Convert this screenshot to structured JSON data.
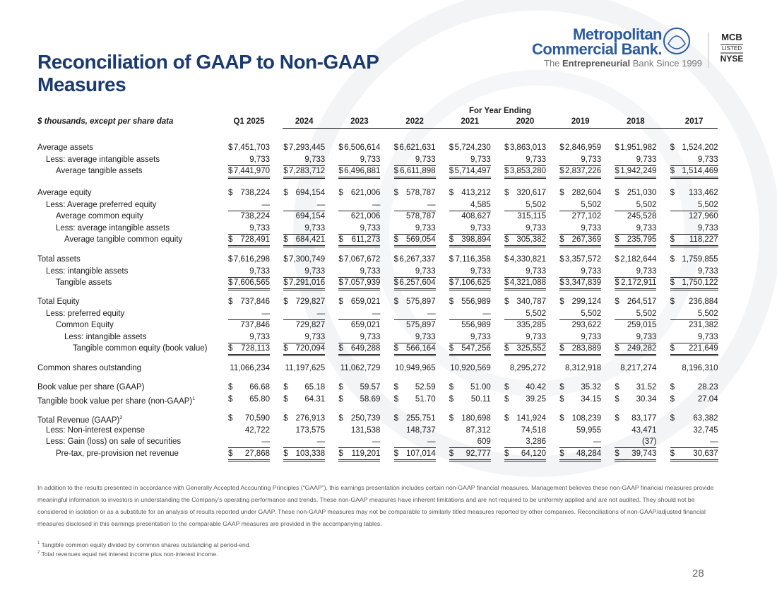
{
  "header": {
    "title": "Reconciliation of GAAP to Non-GAAP Measures",
    "logo": {
      "name_line1": "Metropolitan",
      "name_line2": "Commercial Bank.",
      "tagline": [
        "The ",
        "Entrepreneurial",
        " Bank Since 1999"
      ]
    },
    "listing": [
      "MCB",
      "LISTED",
      "NYSE"
    ]
  },
  "table": {
    "unit_label": "$ thousands, except per share data",
    "group_header": "For Year Ending",
    "columns": [
      "Q1 2025",
      "2024",
      "2023",
      "2022",
      "2021",
      "2020",
      "2019",
      "2018",
      "2017"
    ],
    "groups": [
      [
        {
          "label": "Average assets",
          "prefix": "$",
          "cells": [
            "7,451,703",
            "7,293,445",
            "6,506,614",
            "6,621,631",
            "5,724,230",
            "3,863,013",
            "2,846,959",
            "1,951,982",
            "1,524,202"
          ]
        },
        {
          "label": "Less: average intangible assets",
          "cells": [
            "9,733",
            "9,733",
            "9,733",
            "9,733",
            "9,733",
            "9,733",
            "9,733",
            "9,733",
            "9,733"
          ]
        },
        {
          "label": "Average tangible assets",
          "prefix": "$",
          "cells": [
            "7,441,970",
            "7,283,712",
            "6,496,881",
            "6,611,898",
            "5,714,497",
            "3,853,280",
            "2,837,226",
            "1,942,249",
            "1,514,469"
          ]
        }
      ],
      [
        {
          "label": "Average equity",
          "prefix": "$",
          "cells": [
            "738,224",
            "694,154",
            "621,006",
            "578,787",
            "413,212",
            "320,617",
            "282,604",
            "251,030",
            "133,462"
          ]
        },
        {
          "label": "Less: Average preferred equity",
          "cells": [
            "—",
            "—",
            "—",
            "—",
            "4,585",
            "5,502",
            "5,502",
            "5,502",
            "5,502"
          ]
        },
        {
          "label": "Average common equity",
          "cells": [
            "738,224",
            "694,154",
            "621,006",
            "578,787",
            "408,627",
            "315,115",
            "277,102",
            "245,528",
            "127,960"
          ]
        },
        {
          "label": "Less: average intangible assets",
          "cells": [
            "9,733",
            "9,733",
            "9,733",
            "9,733",
            "9,733",
            "9,733",
            "9,733",
            "9,733",
            "9,733"
          ]
        },
        {
          "label": "Average tangible common equity",
          "prefix": "$",
          "cells": [
            "728,491",
            "684,421",
            "611,273",
            "569,054",
            "398,894",
            "305,382",
            "267,369",
            "235,795",
            "118,227"
          ]
        }
      ],
      [
        {
          "label": "Total assets",
          "prefix": "$",
          "cells": [
            "7,616,298",
            "7,300,749",
            "7,067,672",
            "6,267,337",
            "7,116,358",
            "4,330,821",
            "3,357,572",
            "2,182,644",
            "1,759,855"
          ]
        },
        {
          "label": "Less: intangible assets",
          "cells": [
            "9,733",
            "9,733",
            "9,733",
            "9,733",
            "9,733",
            "9,733",
            "9,733",
            "9,733",
            "9,733"
          ]
        },
        {
          "label": "Tangible assets",
          "prefix": "$",
          "cells": [
            "7,606,565",
            "7,291,016",
            "7,057,939",
            "6,257,604",
            "7,106,625",
            "4,321,088",
            "3,347,839",
            "2,172,911",
            "1,750,122"
          ]
        }
      ],
      [
        {
          "label": "Total Equity",
          "prefix": "$",
          "cells": [
            "737,846",
            "729,827",
            "659,021",
            "575,897",
            "556,989",
            "340,787",
            "299,124",
            "264,517",
            "236,884"
          ]
        },
        {
          "label": "Less: preferred equity",
          "cells": [
            "—",
            "—",
            "—",
            "—",
            "—",
            "5,502",
            "5,502",
            "5,502",
            "5,502"
          ]
        },
        {
          "label": "Common Equity",
          "cells": [
            "737,846",
            "729,827",
            "659,021",
            "575,897",
            "556,989",
            "335,285",
            "293,622",
            "259,015",
            "231,382"
          ]
        },
        {
          "label": "Less: intangible assets",
          "cells": [
            "9,733",
            "9,733",
            "9,733",
            "9,733",
            "9,733",
            "9,733",
            "9,733",
            "9,733",
            "9,733"
          ]
        },
        {
          "label": "Tangible common equity (book value)",
          "prefix": "$",
          "cells": [
            "728,113",
            "720,094",
            "649,288",
            "566,164",
            "547,256",
            "325,552",
            "283,889",
            "249,282",
            "221,649"
          ]
        }
      ],
      [
        {
          "label": "Common shares outstanding",
          "cells": [
            "11,066,234",
            "11,197,625",
            "11,062,729",
            "10,949,965",
            "10,920,569",
            "8,295,272",
            "8,312,918",
            "8,217,274",
            "8,196,310"
          ]
        }
      ],
      [
        {
          "label": "Book value per share (GAAP)",
          "prefix": "$",
          "cells": [
            "66.68",
            "65.18",
            "59.57",
            "52.59",
            "51.00",
            "40.42",
            "35.32",
            "31.52",
            "28.23"
          ]
        },
        {
          "label": "Tangible book value per share (non-GAAP)",
          "note": "1",
          "prefix": "$",
          "cells": [
            "65.80",
            "64.31",
            "58.69",
            "51.70",
            "50.11",
            "39.25",
            "34.15",
            "30.34",
            "27.04"
          ]
        }
      ],
      [
        {
          "label": "Total Revenue (GAAP)",
          "note": "2",
          "prefix": "$",
          "cells": [
            "70,590",
            "276,913",
            "250,739",
            "255,751",
            "180,698",
            "141,924",
            "108,239",
            "83,177",
            "63,382"
          ]
        },
        {
          "label": "Less: Non-interest expense",
          "cells": [
            "42,722",
            "173,575",
            "131,538",
            "148,737",
            "87,312",
            "74,518",
            "59,955",
            "43,471",
            "32,745"
          ]
        },
        {
          "label": "Less: Gain (loss) on sale of securities",
          "cells": [
            "—",
            "—",
            "—",
            "—",
            "609",
            "3,286",
            "—",
            "(37)",
            "—"
          ]
        },
        {
          "label": "Pre-tax, pre-provision net revenue",
          "prefix": "$",
          "cells": [
            "27,868",
            "103,338",
            "119,201",
            "107,014",
            "92,777",
            "64,120",
            "48,284",
            "39,743",
            "30,637"
          ]
        }
      ]
    ]
  },
  "notes": {
    "disclaimer": "In addition to the results presented in accordance with Generally Accepted Accounting Principles (“GAAP”), this earnings presentation includes certain non-GAAP financial measures. Management believes these non-GAAP financial measures provide meaningful information to investors in understanding the Company’s operating performance and trends. These non-GAAP measures have inherent limitations and are not required to be uniformly applied and are not audited. They should not be considered in isolation or as a substitute for an analysis of results reported under GAAP. These non-GAAP measures may not be comparable to similarly titled measures reported by other companies. Reconciliations of non-GAAP/adjusted financial measures disclosed in this earnings presentation to the comparable GAAP measures are provided in the accompanying tables.",
    "footnotes": [
      {
        "mark": "1",
        "text": "Tangible common equity divided by common shares outstanding at period-end."
      },
      {
        "mark": "2",
        "text": "Total revenues equal net interest income plus non-interest income."
      }
    ]
  },
  "page_number": "28"
}
